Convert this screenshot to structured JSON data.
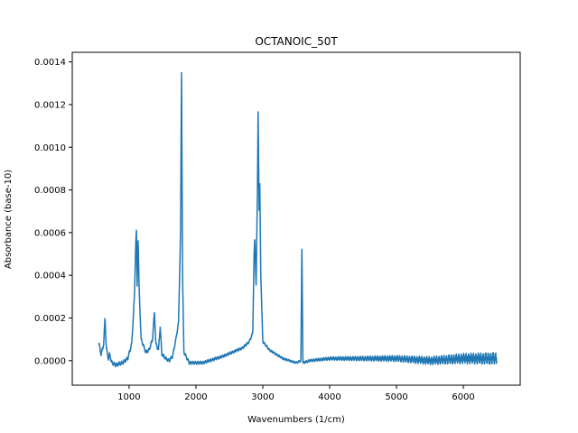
{
  "chart_data": {
    "type": "line",
    "title": "OCTANOIC_50T",
    "xlabel": "Wavenumbers (1/cm)",
    "ylabel": "Absorbance (base-10)",
    "xlim": [
      150,
      6850
    ],
    "ylim": [
      -0.000115,
      0.001445
    ],
    "xticks": [
      1000,
      2000,
      3000,
      4000,
      5000,
      6000
    ],
    "xtick_labels": [
      "1000",
      "2000",
      "3000",
      "4000",
      "5000",
      "6000"
    ],
    "yticks": [
      0.0,
      0.0002,
      0.0004,
      0.0006,
      0.0008,
      0.001,
      0.0012,
      0.0014
    ],
    "ytick_labels": [
      "0.0000",
      "0.0002",
      "0.0004",
      "0.0006",
      "0.0008",
      "0.0010",
      "0.0012",
      "0.0014"
    ],
    "grid": false,
    "color": "#1f77b4",
    "series": [
      {
        "name": "OCTANOIC_50T",
        "baseline": [
          [
            550,
            8e-05
          ],
          [
            580,
            3e-05
          ],
          [
            600,
            5e-05
          ],
          [
            620,
            8e-05
          ],
          [
            640,
            0.0002
          ],
          [
            660,
            6e-05
          ],
          [
            690,
            1e-05
          ],
          [
            710,
            3e-05
          ],
          [
            740,
            -1e-05
          ],
          [
            800,
            -2e-05
          ],
          [
            900,
            -1e-05
          ],
          [
            980,
            1e-05
          ],
          [
            1040,
            8e-05
          ],
          [
            1080,
            0.0003
          ],
          [
            1100,
            0.00055
          ],
          [
            1110,
            0.00061
          ],
          [
            1120,
            0.00035
          ],
          [
            1135,
            0.00057
          ],
          [
            1150,
            0.00034
          ],
          [
            1180,
            0.0001
          ],
          [
            1250,
            4e-05
          ],
          [
            1300,
            5e-05
          ],
          [
            1350,
            0.0001
          ],
          [
            1380,
            0.00023
          ],
          [
            1400,
            8e-05
          ],
          [
            1440,
            5e-05
          ],
          [
            1465,
            0.00016
          ],
          [
            1490,
            3e-05
          ],
          [
            1550,
            1e-05
          ],
          [
            1600,
            0.0
          ],
          [
            1650,
            2e-05
          ],
          [
            1700,
            0.0001
          ],
          [
            1740,
            0.00018
          ],
          [
            1770,
            0.0006
          ],
          [
            1785,
            0.00137
          ],
          [
            1800,
            0.0004
          ],
          [
            1820,
            4e-05
          ],
          [
            1900,
            -1e-05
          ],
          [
            2100,
            -1e-05
          ],
          [
            2400,
            2e-05
          ],
          [
            2700,
            6e-05
          ],
          [
            2800,
            9e-05
          ],
          [
            2850,
            0.00013
          ],
          [
            2870,
            0.0005
          ],
          [
            2880,
            0.00057
          ],
          [
            2900,
            0.00035
          ],
          [
            2920,
            0.0008
          ],
          [
            2930,
            0.00117
          ],
          [
            2945,
            0.0007
          ],
          [
            2955,
            0.00083
          ],
          [
            2970,
            0.0004
          ],
          [
            3000,
            9e-05
          ],
          [
            3100,
            5e-05
          ],
          [
            3300,
            1e-05
          ],
          [
            3500,
            -1e-05
          ],
          [
            3570,
            0.0
          ],
          [
            3585,
            0.00054
          ],
          [
            3600,
            -1e-05
          ],
          [
            3700,
            0.0
          ],
          [
            4000,
            1e-05
          ],
          [
            4500,
            1e-05
          ],
          [
            5000,
            1e-05
          ],
          [
            5500,
            0.0
          ],
          [
            6000,
            1e-05
          ],
          [
            6500,
            1e-05
          ]
        ],
        "noise": [
          [
            550,
            1e-05
          ],
          [
            3500,
            5e-06
          ],
          [
            4300,
            1e-05
          ],
          [
            5000,
            1.5e-05
          ],
          [
            6000,
            2.5e-05
          ],
          [
            6500,
            3e-05
          ]
        ]
      }
    ]
  }
}
